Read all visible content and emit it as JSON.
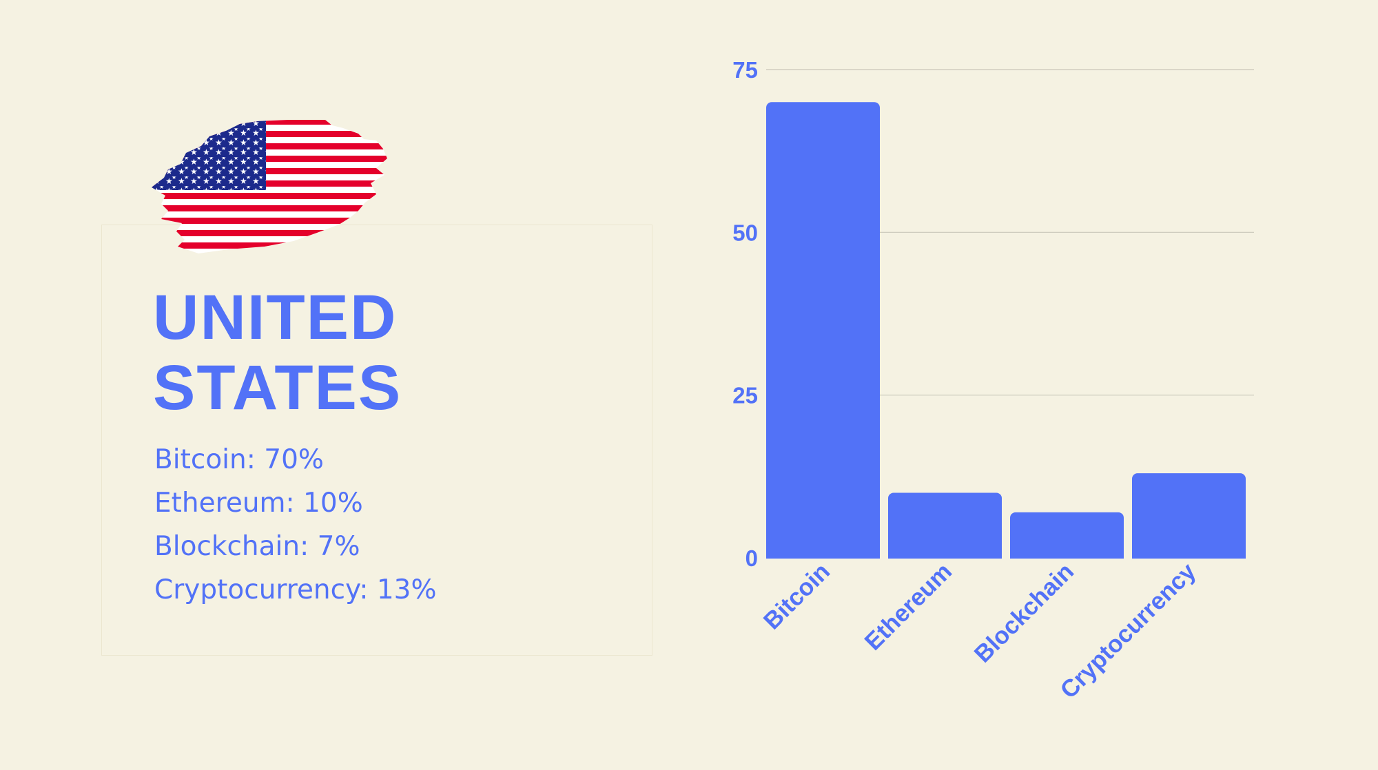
{
  "panel": {
    "country_line1": "UNITED",
    "country_line2": "STATES",
    "stats": [
      "Bitcoin: 70%",
      "Ethereum: 10%",
      "Blockchain: 7%",
      "Cryptocurrency: 13%"
    ],
    "flag_icon": "us-flag-brush-icon"
  },
  "colors": {
    "background": "#f5f2e2",
    "accent": "#5272f7",
    "gridline": "#c9c6b8",
    "flag_red": "#e4002b",
    "flag_blue": "#1c2a8c",
    "flag_white": "#ffffff"
  },
  "chart_data": {
    "type": "bar",
    "categories": [
      "Bitcoin",
      "Ethereum",
      "Blockchain",
      "Cryptocurrency"
    ],
    "values": [
      70,
      10,
      7,
      13
    ],
    "title": "",
    "xlabel": "",
    "ylabel": "",
    "ylim": [
      0,
      75
    ],
    "yticks": [
      0,
      25,
      50,
      75
    ],
    "grid": true,
    "legend": "none"
  }
}
